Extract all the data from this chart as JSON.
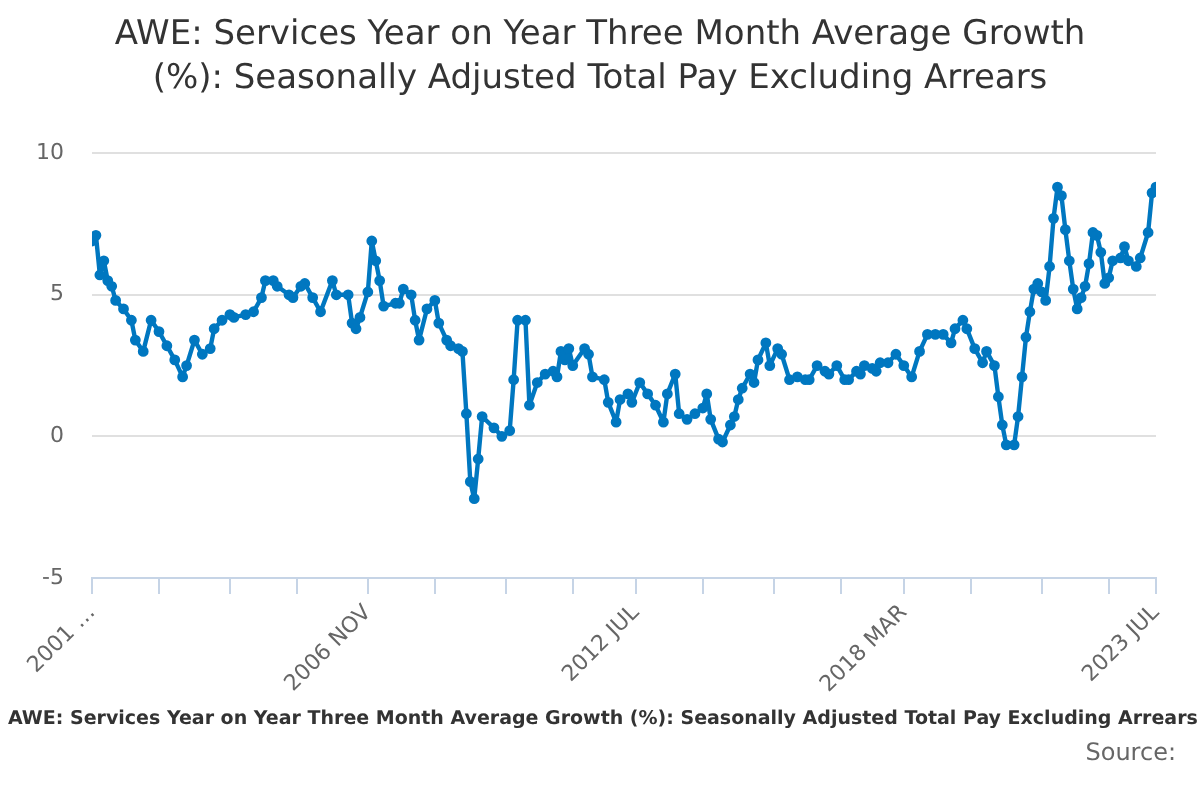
{
  "chart_data": {
    "type": "line",
    "title": "AWE: Services Year on Year Three Month Average Growth (%): Seasonally Adjusted Total Pay Excluding Arrears",
    "xlabel": "AWE: Services Year on Year Three Month Average Growth (%): Seasonally Adjusted Total Pay Excluding Arrears",
    "annotations": [
      "Source:"
    ],
    "x": [
      "2001-01",
      "2001-02",
      "2001-03",
      "2001-04",
      "2001-05",
      "2001-06",
      "2001-07",
      "2001-09",
      "2001-11",
      "2001-12",
      "2002-02",
      "2002-04",
      "2002-06",
      "2002-08",
      "2002-10",
      "2002-12",
      "2003-01",
      "2003-03",
      "2003-05",
      "2003-07",
      "2003-08",
      "2003-10",
      "2003-12",
      "2004-01",
      "2004-04",
      "2004-06",
      "2004-08",
      "2004-09",
      "2004-11",
      "2004-12",
      "2005-03",
      "2005-04",
      "2005-06",
      "2005-07",
      "2005-09",
      "2005-11",
      "2006-02",
      "2006-03",
      "2006-06",
      "2006-07",
      "2006-08",
      "2006-09",
      "2006-11",
      "2006-12",
      "2007-01",
      "2007-02",
      "2007-03",
      "2007-06",
      "2007-07",
      "2007-08",
      "2007-10",
      "2007-11",
      "2007-12",
      "2008-02",
      "2008-04",
      "2008-05",
      "2008-07",
      "2008-08",
      "2008-10",
      "2008-11",
      "2008-12",
      "2009-01",
      "2009-02",
      "2009-03",
      "2009-04",
      "2009-07",
      "2009-09",
      "2009-11",
      "2009-12",
      "2010-01",
      "2010-03",
      "2010-04",
      "2010-06",
      "2010-08",
      "2010-10",
      "2010-11",
      "2010-12",
      "2011-01",
      "2011-02",
      "2011-03",
      "2011-06",
      "2011-07",
      "2011-08",
      "2011-11",
      "2011-12",
      "2012-02",
      "2012-03",
      "2012-05",
      "2012-06",
      "2012-08",
      "2012-10",
      "2012-12",
      "2013-02",
      "2013-03",
      "2013-05",
      "2013-06",
      "2013-08",
      "2013-10",
      "2013-12",
      "2014-01",
      "2014-02",
      "2014-04",
      "2014-05",
      "2014-07",
      "2014-08",
      "2014-09",
      "2014-10",
      "2014-12",
      "2015-01",
      "2015-02",
      "2015-04",
      "2015-05",
      "2015-07",
      "2015-08",
      "2015-10",
      "2015-12",
      "2016-02",
      "2016-03",
      "2016-05",
      "2016-07",
      "2016-08",
      "2016-10",
      "2016-12",
      "2017-01",
      "2017-03",
      "2017-04",
      "2017-05",
      "2017-07",
      "2017-08",
      "2017-09",
      "2017-11",
      "2018-01",
      "2018-03",
      "2018-05",
      "2018-07",
      "2018-09",
      "2018-11",
      "2019-01",
      "2019-03",
      "2019-04",
      "2019-06",
      "2019-07",
      "2019-09",
      "2019-11",
      "2019-12",
      "2020-02",
      "2020-03",
      "2020-04",
      "2020-05",
      "2020-07",
      "2020-08",
      "2020-09",
      "2020-10",
      "2020-11",
      "2020-12",
      "2021-01",
      "2021-02",
      "2021-03",
      "2021-04",
      "2021-05",
      "2021-06",
      "2021-07",
      "2021-08",
      "2021-09",
      "2021-10",
      "2021-11",
      "2021-12",
      "2022-01",
      "2022-02",
      "2022-03",
      "2022-04",
      "2022-05",
      "2022-06",
      "2022-07",
      "2022-08",
      "2022-10",
      "2022-11",
      "2022-12",
      "2023-02",
      "2023-03",
      "2023-05",
      "2023-06",
      "2023-07"
    ],
    "series": [
      {
        "color": "#0077c0",
        "values": [
          6.9,
          7.1,
          5.7,
          6.2,
          5.5,
          5.3,
          4.8,
          4.5,
          4.1,
          3.4,
          3.0,
          4.1,
          3.7,
          3.2,
          2.7,
          2.1,
          2.5,
          3.4,
          2.9,
          3.1,
          3.8,
          4.1,
          4.3,
          4.2,
          4.3,
          4.4,
          4.9,
          5.5,
          5.5,
          5.3,
          5.0,
          4.9,
          5.3,
          5.4,
          4.9,
          4.4,
          5.5,
          5.0,
          5.0,
          4.0,
          3.8,
          4.2,
          5.1,
          6.9,
          6.2,
          5.5,
          4.6,
          4.7,
          4.7,
          5.2,
          5.0,
          4.1,
          3.4,
          4.5,
          4.8,
          4.0,
          3.4,
          3.2,
          3.1,
          3.0,
          0.8,
          -1.6,
          -2.2,
          -0.8,
          0.7,
          0.3,
          0.0,
          0.2,
          2.0,
          4.1,
          4.1,
          1.1,
          1.9,
          2.2,
          2.3,
          2.1,
          3.0,
          2.7,
          3.1,
          2.5,
          3.1,
          2.9,
          2.1,
          2.0,
          1.2,
          0.5,
          1.3,
          1.5,
          1.2,
          1.9,
          1.5,
          1.1,
          0.5,
          1.5,
          2.2,
          0.8,
          0.6,
          0.8,
          1.0,
          1.5,
          0.6,
          -0.1,
          -0.2,
          0.4,
          0.7,
          1.3,
          1.7,
          2.2,
          1.9,
          2.7,
          3.3,
          2.5,
          3.1,
          2.9,
          2.0,
          2.1,
          2.0,
          2.0,
          2.5,
          2.3,
          2.2,
          2.5,
          2.0,
          2.0,
          2.3,
          2.2,
          2.5,
          2.4,
          2.3,
          2.6,
          2.6,
          2.9,
          2.5,
          2.1,
          3.0,
          3.6,
          3.6,
          3.6,
          3.3,
          3.8,
          4.1,
          3.8,
          3.1,
          2.6,
          3.0,
          2.5,
          1.4,
          0.4,
          -0.3,
          -0.3,
          0.7,
          2.1,
          3.5,
          4.4,
          5.2,
          5.4,
          5.1,
          4.8,
          6.0,
          7.7,
          8.8,
          8.5,
          7.3,
          6.2,
          5.2,
          4.5,
          4.9,
          5.3,
          6.1,
          7.2,
          7.1,
          6.5,
          5.4,
          5.6,
          6.2,
          6.3,
          6.7,
          6.2,
          6.0,
          6.3,
          7.2,
          8.6,
          8.8
        ]
      }
    ],
    "xlim": [
      "2001-01",
      "2023-07"
    ],
    "xticks": [
      {
        "value": "2001-01",
        "label": "2001 …"
      },
      {
        "value": "2002-06",
        "label": null
      },
      {
        "value": "2003-12",
        "label": null
      },
      {
        "value": "2005-05",
        "label": null
      },
      {
        "value": "2006-11",
        "label": "2006 NOV"
      },
      {
        "value": "2008-04",
        "label": null
      },
      {
        "value": "2009-10",
        "label": null
      },
      {
        "value": "2011-03",
        "label": null
      },
      {
        "value": "2012-07",
        "label": "2012 JUL"
      },
      {
        "value": "2013-12",
        "label": null
      },
      {
        "value": "2015-06",
        "label": null
      },
      {
        "value": "2016-11",
        "label": null
      },
      {
        "value": "2018-03",
        "label": "2018 MAR"
      },
      {
        "value": "2019-08",
        "label": null
      },
      {
        "value": "2021-02",
        "label": null
      },
      {
        "value": "2022-07",
        "label": null
      },
      {
        "value": "2023-07",
        "label": "2023 JUL"
      }
    ],
    "ylim": [
      -5,
      10
    ],
    "yticks": [
      -5,
      0,
      5,
      10
    ],
    "grid": "y",
    "legend": false,
    "marker": "circle",
    "line_style": "solid"
  }
}
